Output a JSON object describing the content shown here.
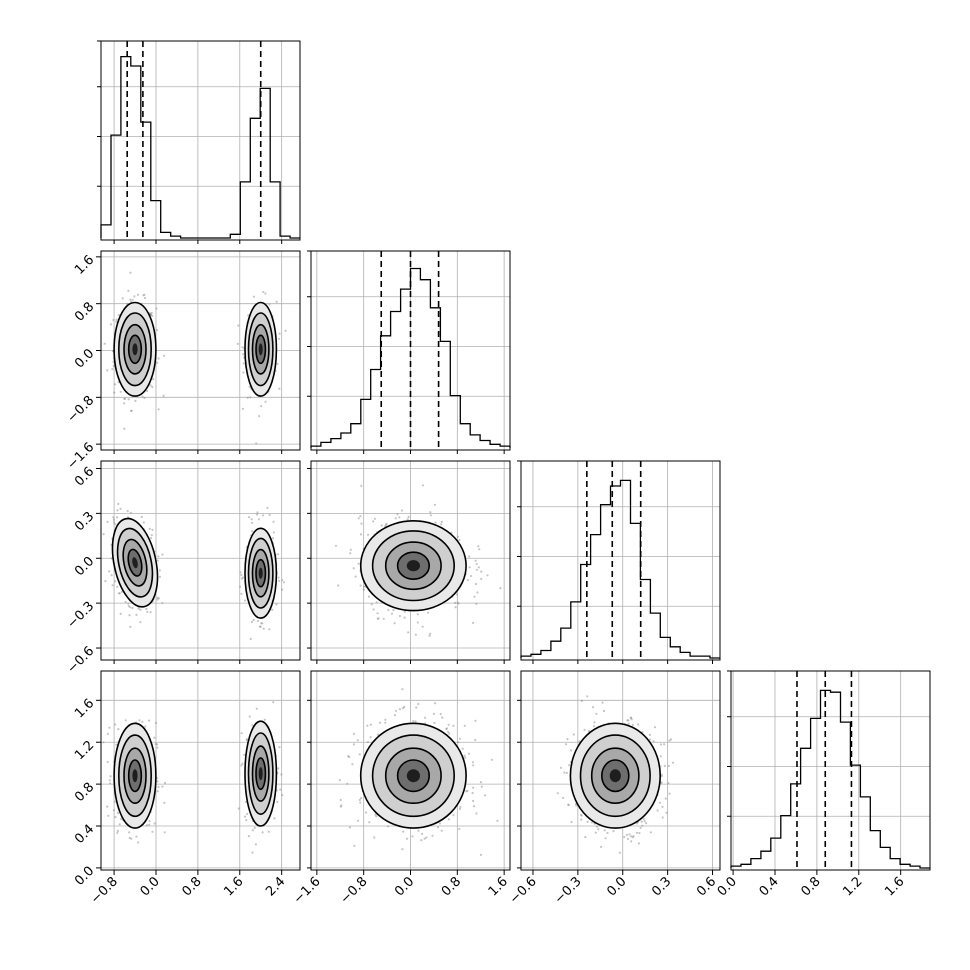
{
  "chart_data": {
    "type": "corner",
    "n_params": 4,
    "params": [
      {
        "index": 0,
        "range": [
          -1.05,
          2.75
        ],
        "ticks": [
          "−0.8",
          "0.0",
          "0.8",
          "1.6",
          "2.4"
        ],
        "tick_values": [
          -0.8,
          0.0,
          0.8,
          1.6,
          2.4
        ]
      },
      {
        "index": 1,
        "range": [
          -1.7,
          1.7
        ],
        "ticks": [
          "−1.6",
          "−0.8",
          "0.0",
          "0.8",
          "1.6"
        ],
        "tick_values": [
          -1.6,
          -0.8,
          0.0,
          0.8,
          1.6
        ]
      },
      {
        "index": 2,
        "range": [
          -0.68,
          0.65
        ],
        "ticks": [
          "−0.6",
          "−0.3",
          "0.0",
          "0.3",
          "0.6"
        ],
        "tick_values": [
          -0.6,
          -0.3,
          0.0,
          0.3,
          0.6
        ]
      },
      {
        "index": 3,
        "range": [
          -0.02,
          1.88
        ],
        "ticks": [
          "0.0",
          "0.4",
          "0.8",
          "1.2",
          "1.6"
        ],
        "tick_values": [
          0.0,
          0.4,
          0.8,
          1.2,
          1.6
        ]
      }
    ],
    "grid": true,
    "histograms": [
      {
        "param": 0,
        "bin_edges": [
          -1.05,
          -0.86,
          -0.67,
          -0.48,
          -0.29,
          -0.1,
          0.09,
          0.28,
          0.47,
          0.66,
          0.85,
          1.04,
          1.23,
          1.42,
          1.61,
          1.8,
          1.99,
          2.18,
          2.37,
          2.56,
          2.75
        ],
        "counts": [
          0.07,
          0.55,
          0.97,
          0.92,
          0.62,
          0.2,
          0.03,
          0.01,
          0,
          0,
          0,
          0,
          0,
          0.02,
          0.3,
          0.64,
          0.8,
          0.3,
          0.01,
          0
        ],
        "quantiles": [
          -0.55,
          -0.25,
          2.0
        ]
      },
      {
        "param": 1,
        "bin_edges": [
          -1.7,
          -1.53,
          -1.36,
          -1.19,
          -1.02,
          -0.85,
          -0.68,
          -0.51,
          -0.34,
          -0.17,
          0.0,
          0.17,
          0.34,
          0.51,
          0.68,
          0.85,
          1.02,
          1.19,
          1.36,
          1.53,
          1.7
        ],
        "counts": [
          0.01,
          0.03,
          0.05,
          0.08,
          0.13,
          0.26,
          0.42,
          0.6,
          0.73,
          0.85,
          0.96,
          0.9,
          0.75,
          0.57,
          0.28,
          0.13,
          0.07,
          0.04,
          0.02,
          0.01
        ],
        "quantiles": [
          -0.5,
          0.0,
          0.48
        ]
      },
      {
        "param": 2,
        "bin_edges": [
          -0.68,
          -0.6135,
          -0.547,
          -0.4805,
          -0.414,
          -0.3475,
          -0.281,
          -0.2145,
          -0.148,
          -0.0815,
          -0.015,
          0.0515,
          0.118,
          0.1845,
          0.251,
          0.3175,
          0.384,
          0.4505,
          0.517,
          0.5835,
          0.65
        ],
        "counts": [
          0.01,
          0.02,
          0.04,
          0.09,
          0.16,
          0.3,
          0.5,
          0.66,
          0.82,
          0.92,
          0.95,
          0.72,
          0.42,
          0.24,
          0.11,
          0.06,
          0.03,
          0.01,
          0.01,
          0
        ],
        "quantiles": [
          -0.24,
          -0.07,
          0.12
        ]
      },
      {
        "param": 3,
        "bin_edges": [
          -0.02,
          0.075,
          0.17,
          0.265,
          0.36,
          0.455,
          0.55,
          0.645,
          0.74,
          0.835,
          0.93,
          1.025,
          1.12,
          1.215,
          1.31,
          1.405,
          1.5,
          1.595,
          1.69,
          1.785,
          1.88
        ],
        "counts": [
          0.01,
          0.02,
          0.05,
          0.09,
          0.16,
          0.28,
          0.45,
          0.64,
          0.8,
          0.95,
          0.94,
          0.78,
          0.55,
          0.38,
          0.2,
          0.11,
          0.05,
          0.02,
          0.01,
          0
        ],
        "quantiles": [
          0.61,
          0.88,
          1.13
        ]
      }
    ],
    "pairs": [
      {
        "x": 0,
        "y": 1,
        "modes": [
          {
            "cx": -0.4,
            "cy": 0.02,
            "sx": 0.2,
            "sy": 0.4,
            "rho": 0,
            "w": 0.6
          },
          {
            "cx": 2.0,
            "cy": 0.02,
            "sx": 0.15,
            "sy": 0.4,
            "rho": 0,
            "w": 0.4
          }
        ]
      },
      {
        "x": 0,
        "y": 2,
        "modes": [
          {
            "cx": -0.4,
            "cy": -0.03,
            "sx": 0.2,
            "sy": 0.15,
            "rho": -0.3,
            "w": 0.6
          },
          {
            "cx": 2.0,
            "cy": -0.1,
            "sx": 0.15,
            "sy": 0.15,
            "rho": 0,
            "w": 0.4
          }
        ]
      },
      {
        "x": 0,
        "y": 3,
        "modes": [
          {
            "cx": -0.4,
            "cy": 0.88,
            "sx": 0.2,
            "sy": 0.25,
            "rho": 0,
            "w": 0.6
          },
          {
            "cx": 2.0,
            "cy": 0.9,
            "sx": 0.15,
            "sy": 0.25,
            "rho": 0,
            "w": 0.4
          }
        ]
      },
      {
        "x": 1,
        "y": 2,
        "modes": [
          {
            "cx": 0.05,
            "cy": -0.05,
            "sx": 0.45,
            "sy": 0.15,
            "rho": 0,
            "w": 1
          }
        ]
      },
      {
        "x": 1,
        "y": 3,
        "modes": [
          {
            "cx": 0.05,
            "cy": 0.88,
            "sx": 0.45,
            "sy": 0.25,
            "rho": 0,
            "w": 1
          }
        ]
      },
      {
        "x": 2,
        "y": 3,
        "modes": [
          {
            "cx": -0.05,
            "cy": 0.88,
            "sx": 0.15,
            "sy": 0.25,
            "rho": 0,
            "w": 1
          }
        ]
      }
    ]
  }
}
